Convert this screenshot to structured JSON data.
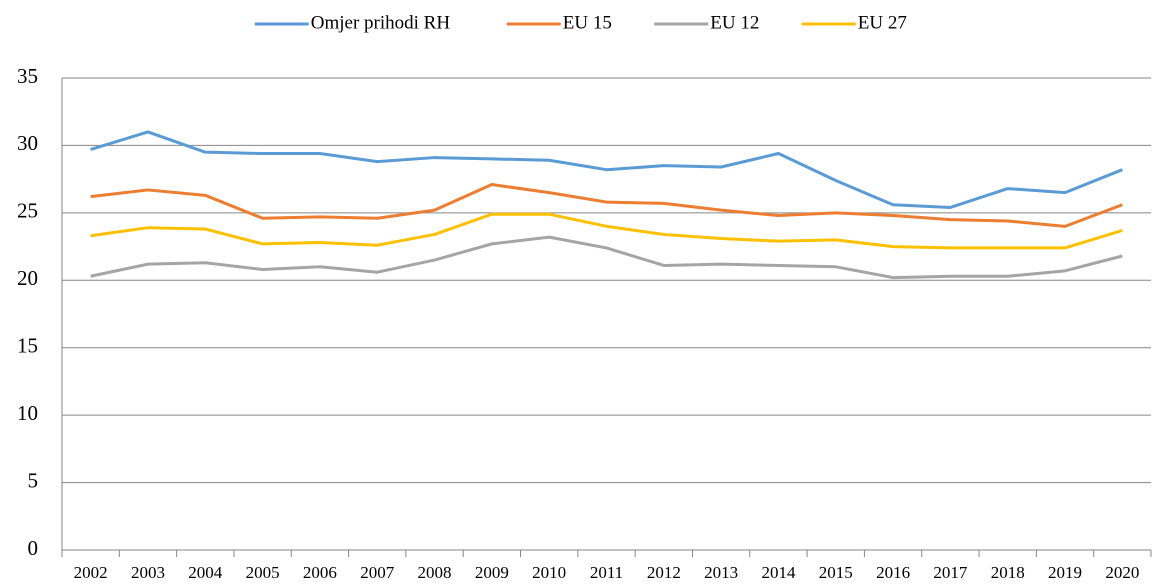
{
  "chart_data": {
    "type": "line",
    "categories": [
      "2002",
      "2003",
      "2004",
      "2005",
      "2006",
      "2007",
      "2008",
      "2009",
      "2010",
      "2011",
      "2012",
      "2013",
      "2014",
      "2015",
      "2016",
      "2017",
      "2018",
      "2019",
      "2020"
    ],
    "series": [
      {
        "name": "Omjer prihodi RH",
        "color": "#5b9bd5",
        "values": [
          29.7,
          31.0,
          29.5,
          29.4,
          29.4,
          28.8,
          29.1,
          29.0,
          28.9,
          28.2,
          28.5,
          28.4,
          29.4,
          27.4,
          25.6,
          25.4,
          26.8,
          26.5,
          28.2
        ]
      },
      {
        "name": "EU 15",
        "color": "#ed7d31",
        "values": [
          26.2,
          26.7,
          26.3,
          24.6,
          24.7,
          24.6,
          25.2,
          27.1,
          26.5,
          25.8,
          25.7,
          25.2,
          24.8,
          25.0,
          24.8,
          24.5,
          24.4,
          24.0,
          25.6
        ]
      },
      {
        "name": "EU 12",
        "color": "#a5a5a5",
        "values": [
          20.3,
          21.2,
          21.3,
          20.8,
          21.0,
          20.6,
          21.5,
          22.7,
          23.2,
          22.4,
          21.1,
          21.2,
          21.1,
          21.0,
          20.2,
          20.3,
          20.3,
          20.7,
          21.8
        ]
      },
      {
        "name": "EU 27",
        "color": "#ffc000",
        "values": [
          23.3,
          23.9,
          23.8,
          22.7,
          22.8,
          22.6,
          23.4,
          24.9,
          24.9,
          24.0,
          23.4,
          23.1,
          22.9,
          23.0,
          22.5,
          22.4,
          22.4,
          22.4,
          23.7
        ]
      }
    ],
    "ylim": [
      0,
      35
    ],
    "yticks": [
      0,
      5,
      10,
      15,
      20,
      25,
      30,
      35
    ],
    "grid": true,
    "legend": "top"
  }
}
